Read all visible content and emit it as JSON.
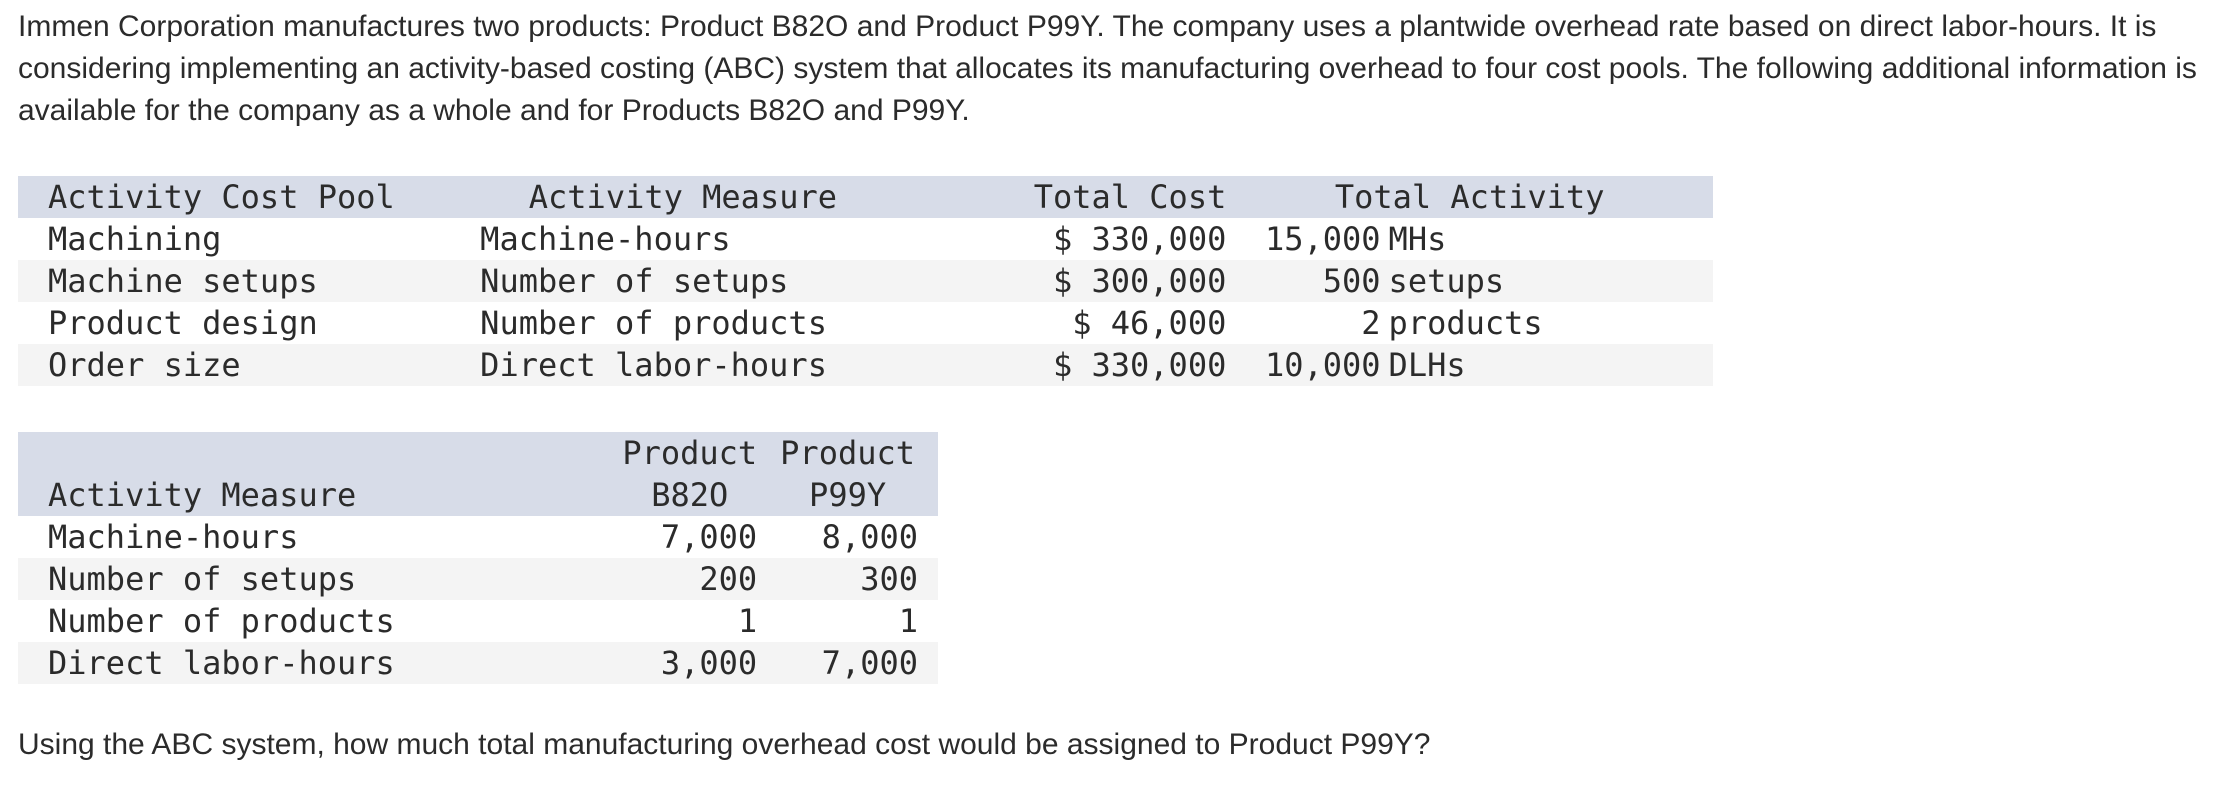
{
  "intro": "Immen Corporation manufactures two products: Product B82O and Product P99Y. The company uses a plantwide overhead rate based on direct labor-hours. It is considering implementing an activity-based costing (ABC) system that allocates its manufacturing overhead to four cost pools. The following additional information is available for the company as a whole and for Products B82O and P99Y.",
  "table1": {
    "headers": {
      "pool": "Activity Cost Pool",
      "measure": "Activity Measure",
      "cost": "Total Cost",
      "activity": "Total Activity"
    },
    "rows": [
      {
        "pool": "Machining",
        "measure": "Machine-hours",
        "cost": "$ 330,000",
        "qty": "15,000",
        "unit": "MHs"
      },
      {
        "pool": "Machine setups",
        "measure": "Number of setups",
        "cost": "$ 300,000",
        "qty": "500",
        "unit": "setups"
      },
      {
        "pool": "Product design",
        "measure": "Number of products",
        "cost": "$ 46,000",
        "qty": "2",
        "unit": "products"
      },
      {
        "pool": "Order size",
        "measure": "Direct labor-hours",
        "cost": "$ 330,000",
        "qty": "10,000",
        "unit": "DLHs"
      }
    ]
  },
  "table2": {
    "headers": {
      "measure": "Activity Measure",
      "b_line1": "Product",
      "b_line2": "B82O",
      "p_line1": "Product",
      "p_line2": "P99Y"
    },
    "rows": [
      {
        "measure": "Machine-hours",
        "b": "7,000",
        "p": "8,000"
      },
      {
        "measure": "Number of setups",
        "b": "200",
        "p": "300"
      },
      {
        "measure": "Number of products",
        "b": "1",
        "p": "1"
      },
      {
        "measure": "Direct labor-hours",
        "b": "3,000",
        "p": "7,000"
      }
    ]
  },
  "question": "Using the ABC system, how much total manufacturing overhead cost would be assigned to Product P99Y?"
}
